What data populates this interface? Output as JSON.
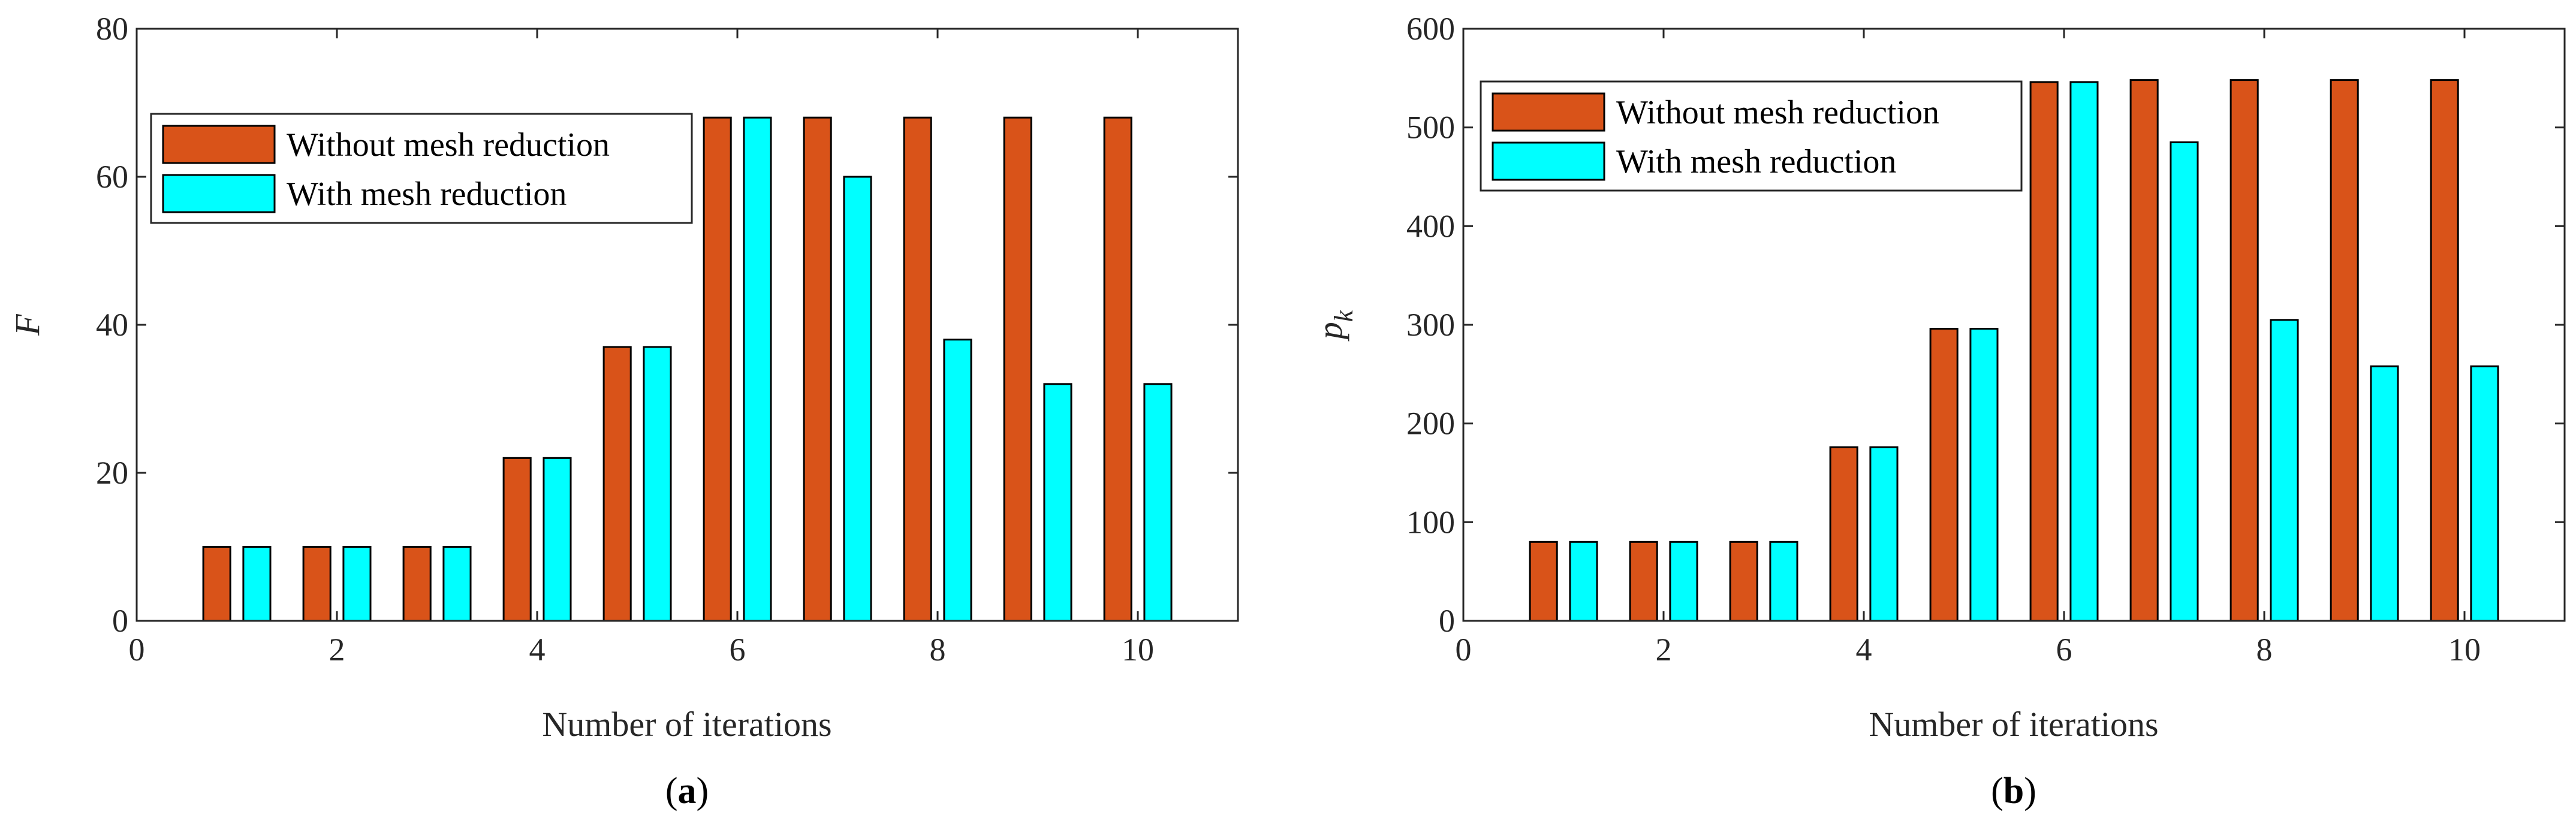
{
  "panels": [
    {
      "label_prefix": "(",
      "label_letter": "a",
      "label_suffix": ")",
      "legend": [
        "Without mesh reduction",
        "With mesh reduction"
      ]
    },
    {
      "label_prefix": "(",
      "label_letter": "b",
      "label_suffix": ")",
      "legend": [
        "Without mesh reduction",
        "With mesh reduction"
      ]
    }
  ],
  "chart_data": [
    {
      "type": "bar",
      "title": "",
      "xlabel": "Number of iterations",
      "ylabel": "F",
      "ylabel_subscript": "",
      "xlim": [
        0,
        11
      ],
      "ylim": [
        0,
        80
      ],
      "xticks": [
        0,
        2,
        4,
        6,
        8,
        10
      ],
      "yticks": [
        0,
        20,
        40,
        60,
        80
      ],
      "categories": [
        1,
        2,
        3,
        4,
        5,
        6,
        7,
        8,
        9,
        10
      ],
      "series": [
        {
          "name": "Without mesh reduction",
          "color": "#D95319",
          "values": [
            10,
            10,
            10,
            22,
            37,
            68,
            68,
            68,
            68,
            68
          ]
        },
        {
          "name": "With mesh reduction",
          "color": "#00FFFF",
          "values": [
            10,
            10,
            10,
            22,
            37,
            68,
            60,
            38,
            32,
            32
          ]
        }
      ],
      "legend_position": "top-left"
    },
    {
      "type": "bar",
      "title": "",
      "xlabel": "Number of iterations",
      "ylabel": "p",
      "ylabel_subscript": "k",
      "xlim": [
        0,
        11
      ],
      "ylim": [
        0,
        600
      ],
      "xticks": [
        0,
        2,
        4,
        6,
        8,
        10
      ],
      "yticks": [
        0,
        100,
        200,
        300,
        400,
        500,
        600
      ],
      "categories": [
        1,
        2,
        3,
        4,
        5,
        6,
        7,
        8,
        9,
        10
      ],
      "series": [
        {
          "name": "Without mesh reduction",
          "color": "#D95319",
          "values": [
            80,
            80,
            80,
            176,
            296,
            546,
            548,
            548,
            548,
            548
          ]
        },
        {
          "name": "With mesh reduction",
          "color": "#00FFFF",
          "values": [
            80,
            80,
            80,
            176,
            296,
            546,
            485,
            305,
            258,
            258
          ]
        }
      ],
      "legend_position": "top-left"
    }
  ]
}
